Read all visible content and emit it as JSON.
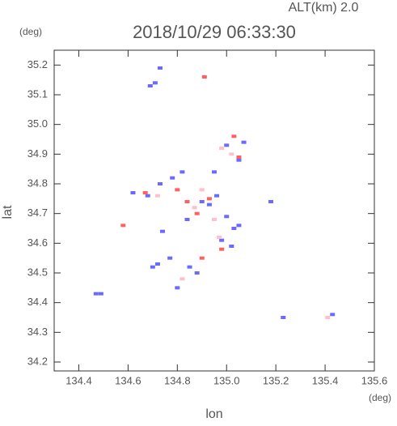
{
  "chart_data": {
    "type": "scatter",
    "title": "2018/10/29 06:33:30",
    "subtitle": "ALT(km) 2.0",
    "y_unit": "(deg)",
    "x_unit": "(deg)",
    "x_label": "lon",
    "y_label": "lat",
    "xlim": [
      134.3,
      135.6
    ],
    "ylim": [
      34.17,
      35.25
    ],
    "xticks": [
      134.4,
      134.6,
      134.8,
      {
        "value": 135.0,
        "label": "135.0"
      },
      135.2,
      135.4,
      135.6
    ],
    "yticks": [
      34.2,
      34.3,
      34.4,
      34.5,
      34.6,
      34.7,
      34.8,
      34.9,
      {
        "value": 35.0,
        "label": "35.0"
      },
      35.1,
      35.2
    ],
    "series": [
      {
        "color": "#6a6aff",
        "x": [
          134.47,
          134.49,
          134.69,
          134.71,
          134.73,
          134.62,
          134.68,
          134.73,
          134.78,
          134.82,
          134.7,
          134.72,
          134.77,
          134.8,
          134.85,
          134.88,
          134.9,
          134.93,
          134.96,
          135.0,
          135.03,
          135.05,
          134.98,
          135.02,
          134.95,
          135.0,
          135.05,
          135.07,
          135.18,
          135.23,
          135.43,
          134.84,
          134.74
        ],
        "values": [
          34.43,
          34.43,
          35.13,
          35.14,
          35.19,
          34.77,
          34.76,
          34.8,
          34.82,
          34.84,
          34.52,
          34.53,
          34.55,
          34.45,
          34.52,
          34.5,
          34.74,
          34.73,
          34.76,
          34.69,
          34.65,
          34.66,
          34.61,
          34.59,
          34.84,
          34.93,
          34.88,
          34.94,
          34.74,
          34.35,
          34.36,
          34.68,
          34.64
        ]
      },
      {
        "color": "#ff6060",
        "x": [
          134.58,
          134.84,
          134.88,
          134.93,
          134.98,
          135.03,
          134.9,
          134.8,
          134.67,
          134.91,
          135.05
        ],
        "values": [
          34.66,
          34.74,
          34.7,
          34.75,
          34.58,
          34.96,
          34.55,
          34.78,
          34.77,
          35.16,
          34.89
        ]
      },
      {
        "color": "#ffc0cb",
        "x": [
          134.98,
          135.02,
          134.9,
          134.87,
          134.72,
          134.95,
          135.41,
          134.82,
          134.97
        ],
        "values": [
          34.92,
          34.9,
          34.78,
          34.72,
          34.76,
          34.68,
          34.35,
          34.48,
          34.62
        ]
      }
    ]
  }
}
